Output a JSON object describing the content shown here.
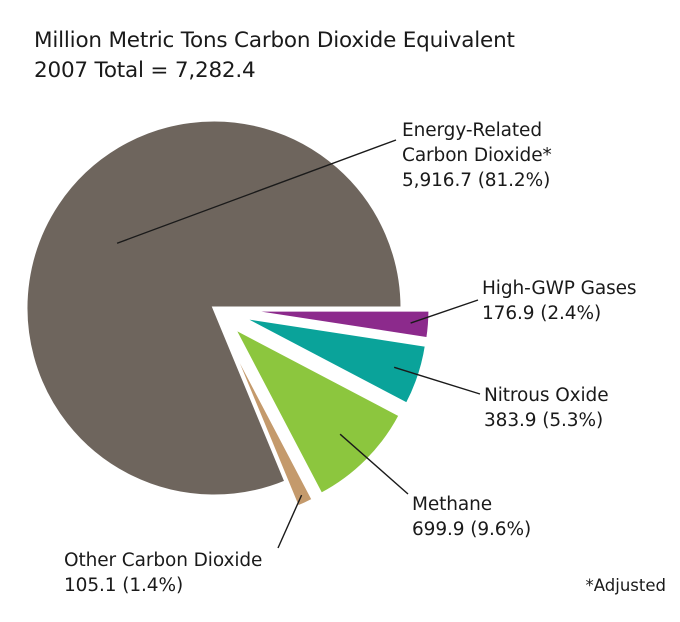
{
  "chart_data": {
    "type": "pie",
    "title": "Million Metric Tons Carbon Dioxide Equivalent",
    "subtitle": "2007 Total = 7,282.4",
    "slices": [
      {
        "name": "Energy-Related Carbon Dioxide*",
        "name_lines": [
          "Energy-Related",
          "Carbon Dioxide*"
        ],
        "value": 5916.7,
        "percent": 81.2,
        "value_label": "5,916.7 (81.2%)",
        "color": "#6e655d",
        "exploded": false
      },
      {
        "name": "High-GWP Gases",
        "name_lines": [
          "High-GWP Gases"
        ],
        "value": 176.9,
        "percent": 2.4,
        "value_label": "176.9 (2.4%)",
        "color": "#8c2a8c",
        "exploded": true
      },
      {
        "name": "Nitrous Oxide",
        "name_lines": [
          "Nitrous Oxide"
        ],
        "value": 383.9,
        "percent": 5.3,
        "value_label": "383.9 (5.3%)",
        "color": "#0aa39a",
        "exploded": true
      },
      {
        "name": "Methane",
        "name_lines": [
          "Methane"
        ],
        "value": 699.9,
        "percent": 9.6,
        "value_label": "699.9 (9.6%)",
        "color": "#8cc63e",
        "exploded": true
      },
      {
        "name": "Other Carbon Dioxide",
        "name_lines": [
          "Other Carbon Dioxide"
        ],
        "value": 105.1,
        "percent": 1.4,
        "value_label": "105.1 (1.4%)",
        "color": "#c49a6c",
        "exploded": true
      }
    ],
    "footnote": "*Adjusted"
  }
}
